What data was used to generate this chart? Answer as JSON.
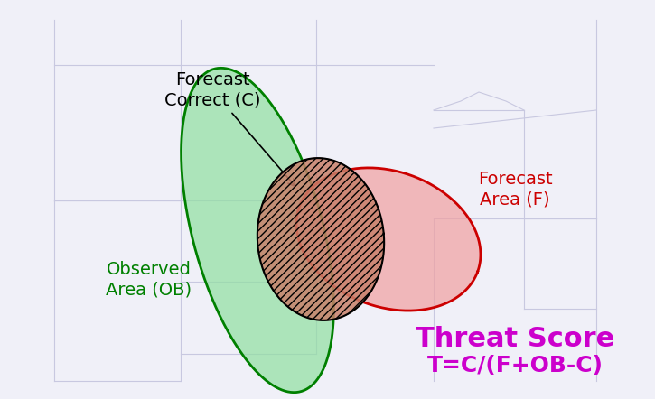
{
  "bg_color": "#f0f0f8",
  "map_line_color": "#c8c8e0",
  "green_fill": "#90e0a0",
  "green_edge": "#008000",
  "red_fill": "#f0a0a0",
  "red_edge": "#cc0000",
  "intersection_fill": "#c8806a",
  "intersection_edge": "#000000",
  "hatch_pattern": "////",
  "label_forecast_correct": "Forecast\nCorrect (C)",
  "label_observed": "Observed\nArea (OB)",
  "label_forecast_area": "Forecast\nArea (F)",
  "label_threat_score": "Threat Score",
  "label_formula": "T=C/(F+OB-C)",
  "green_label_color": "#008000",
  "red_label_color": "#cc0000",
  "purple_color": "#cc00cc",
  "black_color": "#000000",
  "title_fontsize": 22,
  "formula_fontsize": 18,
  "label_fontsize": 14
}
